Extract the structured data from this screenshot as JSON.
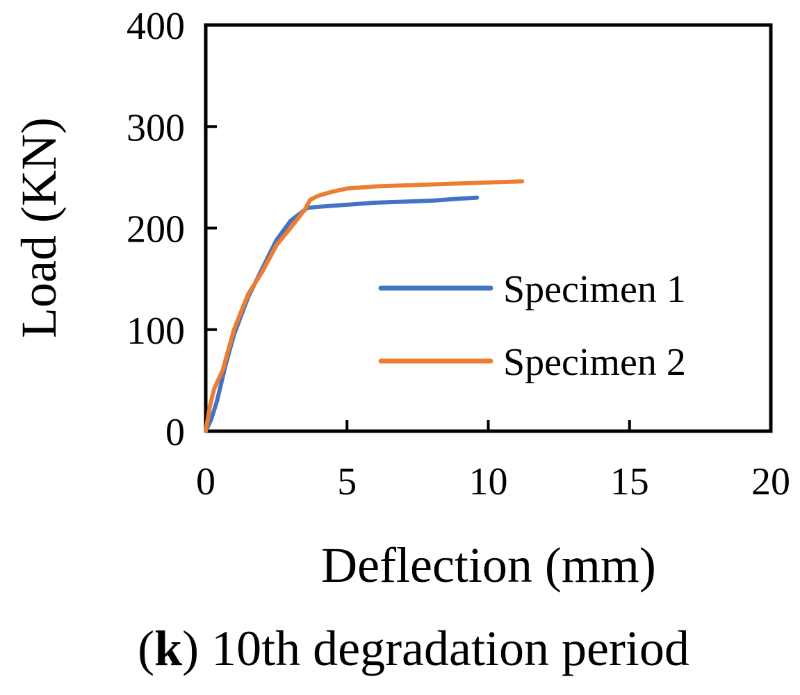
{
  "chart_data": {
    "type": "line",
    "title": "",
    "xlabel": "Deflection (mm)",
    "ylabel": "Load (KN)",
    "xlim": [
      0,
      20
    ],
    "ylim": [
      0,
      400
    ],
    "xticks": [
      0,
      5,
      10,
      15,
      20
    ],
    "yticks": [
      0,
      100,
      200,
      300,
      400
    ],
    "grid": false,
    "legend_position": "center-right",
    "series": [
      {
        "name": "Specimen 1",
        "color": "#4472C4",
        "x": [
          0,
          0.2,
          0.4,
          0.7,
          1.0,
          1.5,
          2.0,
          2.5,
          3.0,
          3.6,
          4.0,
          5.0,
          6.0,
          7.0,
          8.0,
          9.0,
          9.6
        ],
        "y": [
          0,
          12,
          30,
          65,
          95,
          132,
          160,
          188,
          207,
          220,
          221,
          223,
          225,
          226,
          227,
          229,
          230
        ]
      },
      {
        "name": "Specimen 2",
        "color": "#ED7D31",
        "x": [
          0,
          0.15,
          0.3,
          0.6,
          0.8,
          1.0,
          1.5,
          2.0,
          2.5,
          3.0,
          3.5,
          3.7,
          4.0,
          4.5,
          5.0,
          5.5,
          6.0,
          7.0,
          8.0,
          9.0,
          10.0,
          11.2
        ],
        "y": [
          0,
          25,
          42,
          60,
          80,
          100,
          135,
          157,
          183,
          200,
          218,
          228,
          232,
          236,
          239,
          240,
          241,
          242,
          243,
          244,
          245,
          246
        ]
      }
    ]
  },
  "caption": {
    "label_bold": "k",
    "open_paren": "(",
    "close_paren": ")",
    "text": " 10th degradation period"
  }
}
